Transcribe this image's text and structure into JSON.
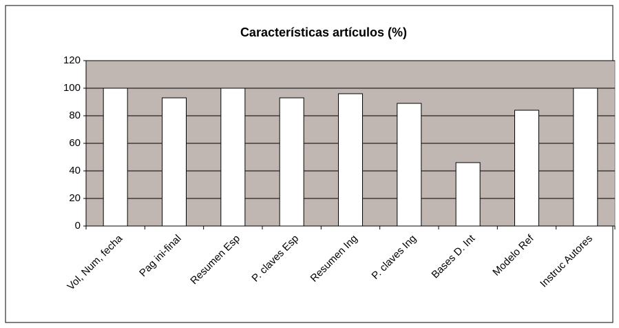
{
  "chart_data": {
    "type": "bar",
    "title": "Características artículos (%)",
    "categories": [
      "Vol, Num, fecha",
      "Pag ini-final",
      "Resumen Esp",
      "P. claves Esp",
      "Resumen Ing",
      "P. claves Ing",
      "Bases D. Int",
      "Modelo Ref",
      "Instruc Autores"
    ],
    "values": [
      100,
      93,
      100,
      93,
      96,
      89,
      46,
      84,
      100
    ],
    "color": "#ffffff",
    "plot_background": "#c0b6b2",
    "ylim": [
      0,
      120
    ],
    "yticks": [
      0,
      20,
      40,
      60,
      80,
      100,
      120
    ],
    "grid": true
  }
}
